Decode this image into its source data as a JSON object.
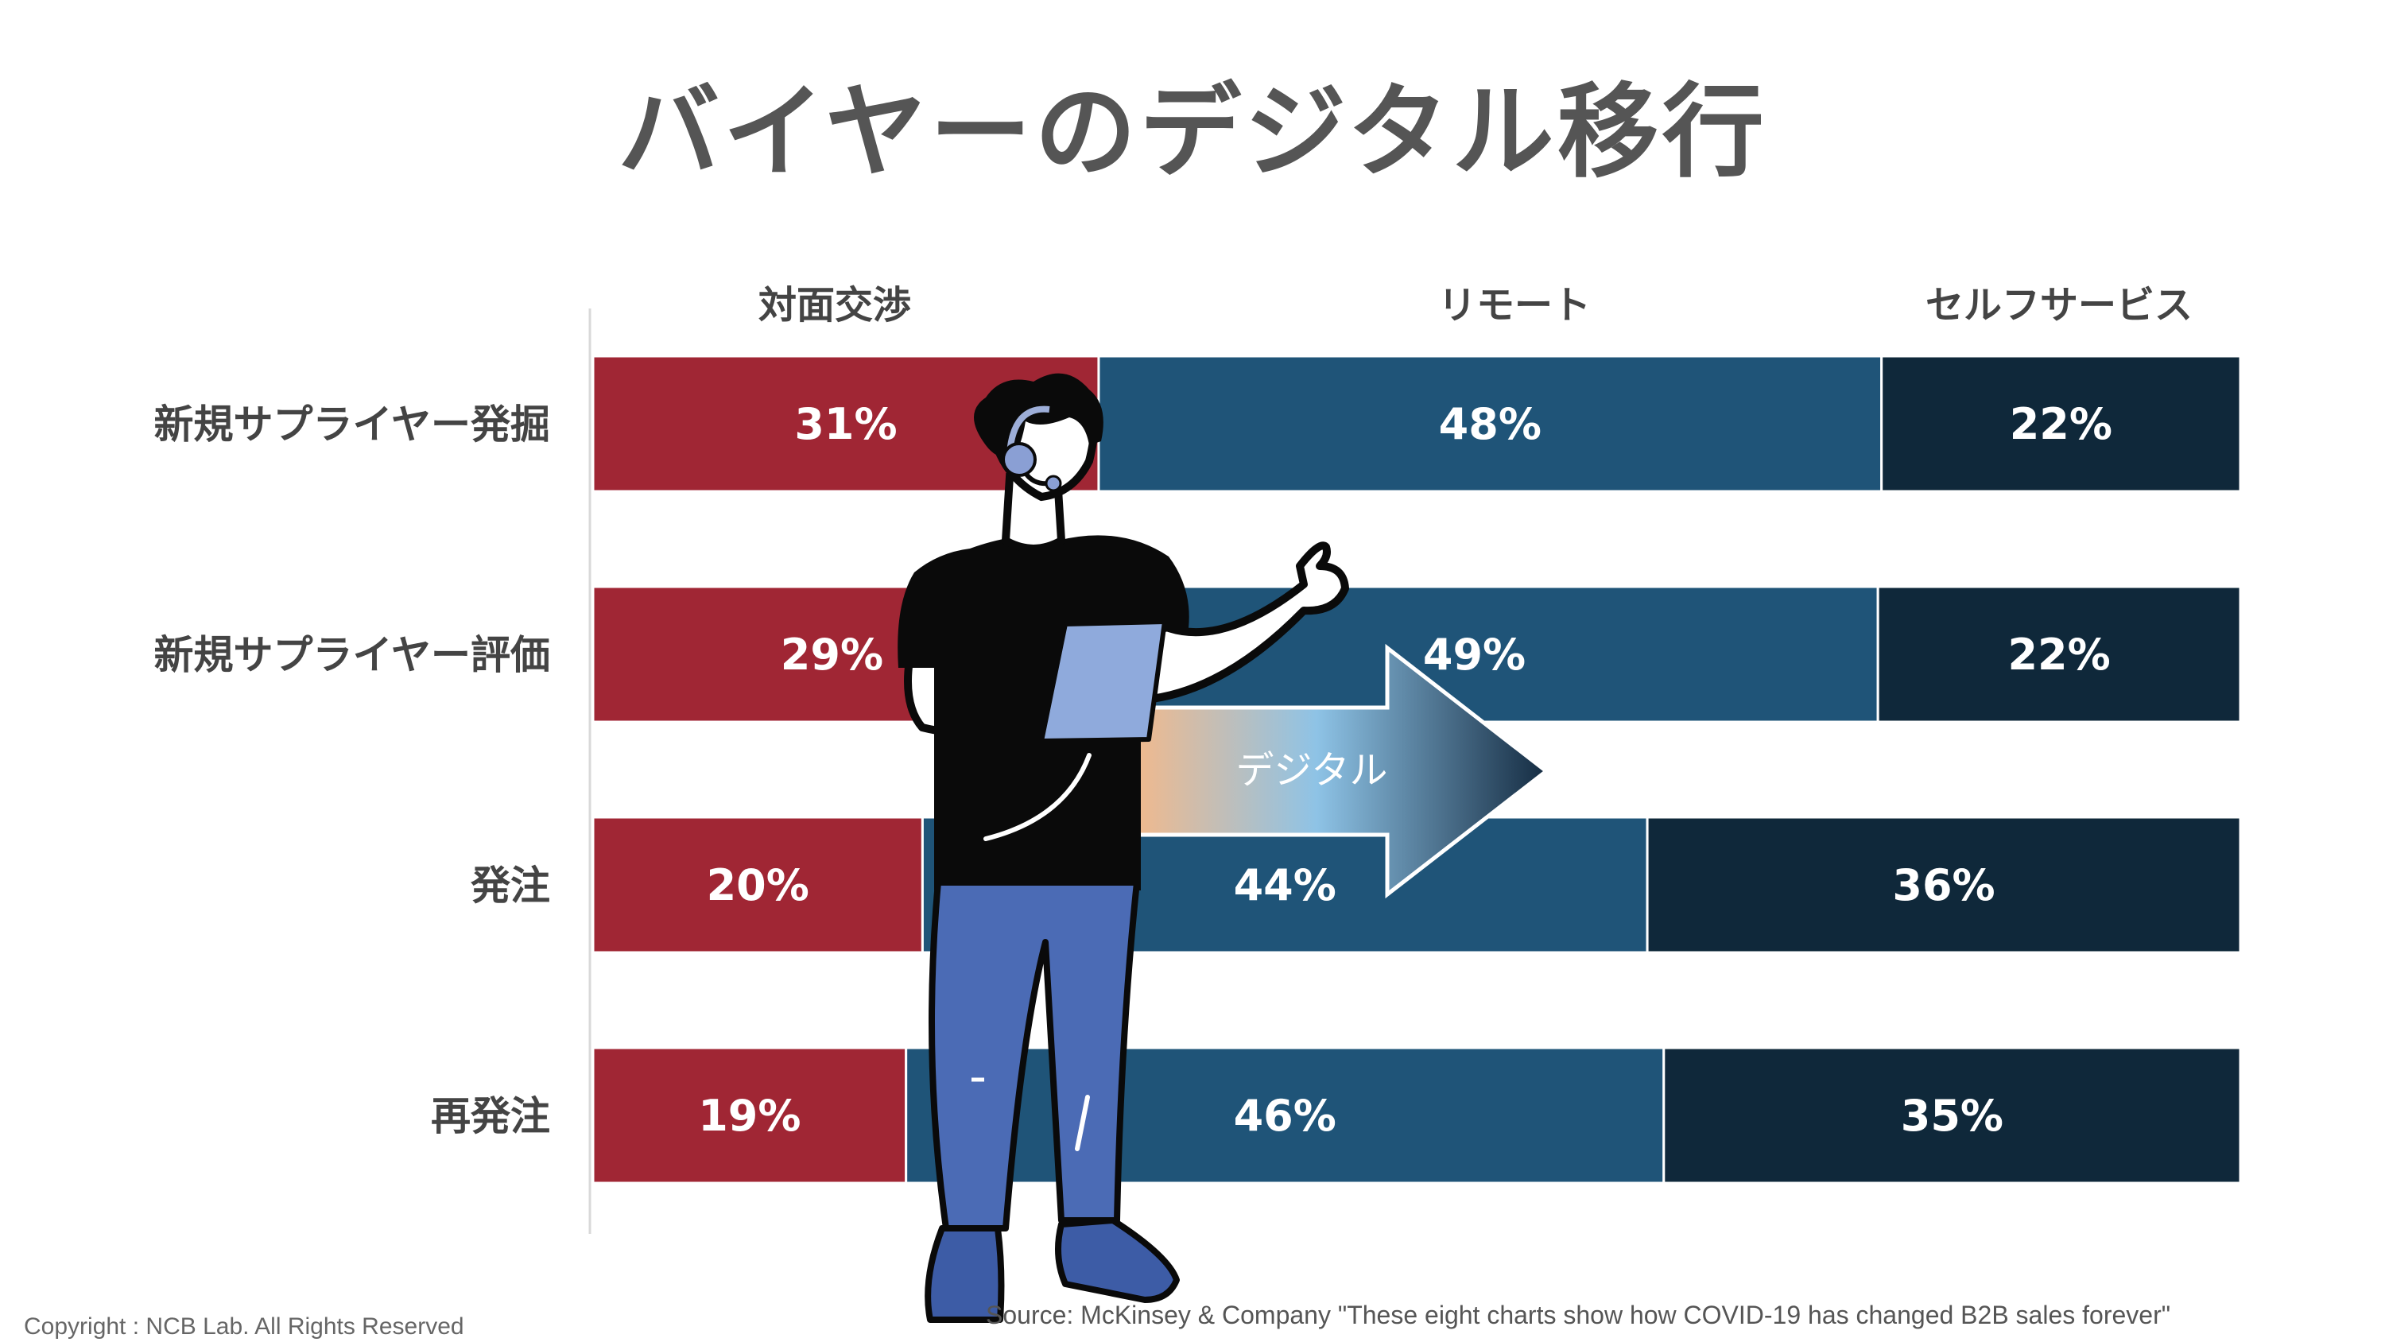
{
  "title": "バイヤーのデジタル移行",
  "chart_data": {
    "type": "bar",
    "stacked": true,
    "orientation": "horizontal",
    "percent_stacked": true,
    "categories": [
      "新規サプライヤー発掘",
      "新規サプライヤー評価",
      "発注",
      "再発注"
    ],
    "series": [
      {
        "name": "対面交渉",
        "values": [
          31,
          29,
          20,
          19
        ],
        "color": "#A02634"
      },
      {
        "name": "リモート",
        "values": [
          48,
          49,
          44,
          46
        ],
        "color": "#1F5478"
      },
      {
        "name": "セルフサービス",
        "values": [
          22,
          22,
          36,
          35
        ],
        "color": "#0F283A"
      }
    ],
    "value_suffix": "%",
    "legend_placement": "top",
    "grid": false
  },
  "arrow": {
    "label": "デジタル"
  },
  "illustration": {
    "name": "presenter-with-headset-and-tablet"
  },
  "footer": {
    "copyright": "Copyright : NCB Lab. All Rights Reserved",
    "source": "Source: McKinsey & Company \"These eight charts show how COVID-19 has changed B2B sales forever\""
  }
}
